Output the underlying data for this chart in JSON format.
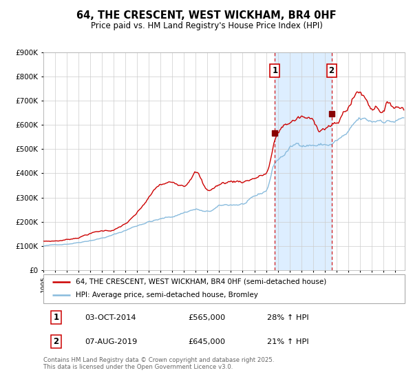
{
  "title": "64, THE CRESCENT, WEST WICKHAM, BR4 0HF",
  "subtitle": "Price paid vs. HM Land Registry's House Price Index (HPI)",
  "ylabel_ticks": [
    "£0",
    "£100K",
    "£200K",
    "£300K",
    "£400K",
    "£500K",
    "£600K",
    "£700K",
    "£800K",
    "£900K"
  ],
  "ylim": [
    0,
    900000
  ],
  "xlim_start": 1995.0,
  "xlim_end": 2025.83,
  "legend1": "64, THE CRESCENT, WEST WICKHAM, BR4 0HF (semi-detached house)",
  "legend2": "HPI: Average price, semi-detached house, Bromley",
  "sale1_date": "03-OCT-2014",
  "sale1_price": "£565,000",
  "sale1_hpi": "28% ↑ HPI",
  "sale1_x": 2014.75,
  "sale1_y": 565000,
  "sale2_date": "07-AUG-2019",
  "sale2_price": "£645,000",
  "sale2_hpi": "21% ↑ HPI",
  "sale2_x": 2019.58,
  "sale2_y": 645000,
  "shade_start": 2014.75,
  "shade_end": 2019.58,
  "dashed_line_color": "#cc0000",
  "shade_color": "#ddeeff",
  "red_line_color": "#cc0000",
  "blue_line_color": "#88bbdd",
  "bg_color": "#ffffff",
  "grid_color": "#cccccc",
  "footnote": "Contains HM Land Registry data © Crown copyright and database right 2025.\nThis data is licensed under the Open Government Licence v3.0."
}
